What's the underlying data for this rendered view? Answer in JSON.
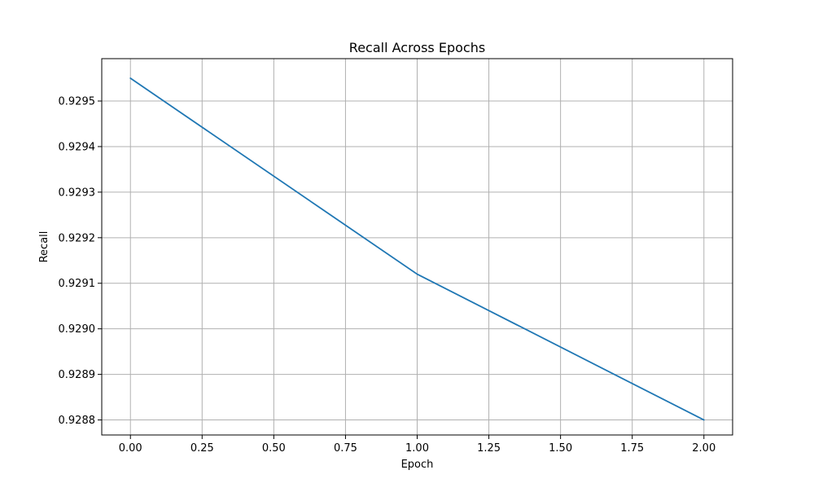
{
  "chart_data": {
    "type": "line",
    "title": "Recall Across Epochs",
    "xlabel": "Epoch",
    "ylabel": "Recall",
    "xlim": [
      -0.1,
      2.1
    ],
    "ylim": [
      0.928767,
      0.929593
    ],
    "grid": true,
    "series": [
      {
        "x": [
          0,
          1,
          2
        ],
        "values": [
          0.92955,
          0.92912,
          0.9288
        ],
        "color": "#1f77b4"
      }
    ],
    "xticks": [
      0.0,
      0.25,
      0.5,
      0.75,
      1.0,
      1.25,
      1.5,
      1.75,
      2.0
    ],
    "xtick_labels": [
      "0.00",
      "0.25",
      "0.50",
      "0.75",
      "1.00",
      "1.25",
      "1.50",
      "1.75",
      "2.00"
    ],
    "yticks": [
      0.9288,
      0.9289,
      0.929,
      0.9291,
      0.9292,
      0.9293,
      0.9294,
      0.9295
    ],
    "ytick_labels": [
      "0.9288",
      "0.9289",
      "0.9290",
      "0.9291",
      "0.9292",
      "0.9293",
      "0.9294",
      "0.9295"
    ]
  }
}
